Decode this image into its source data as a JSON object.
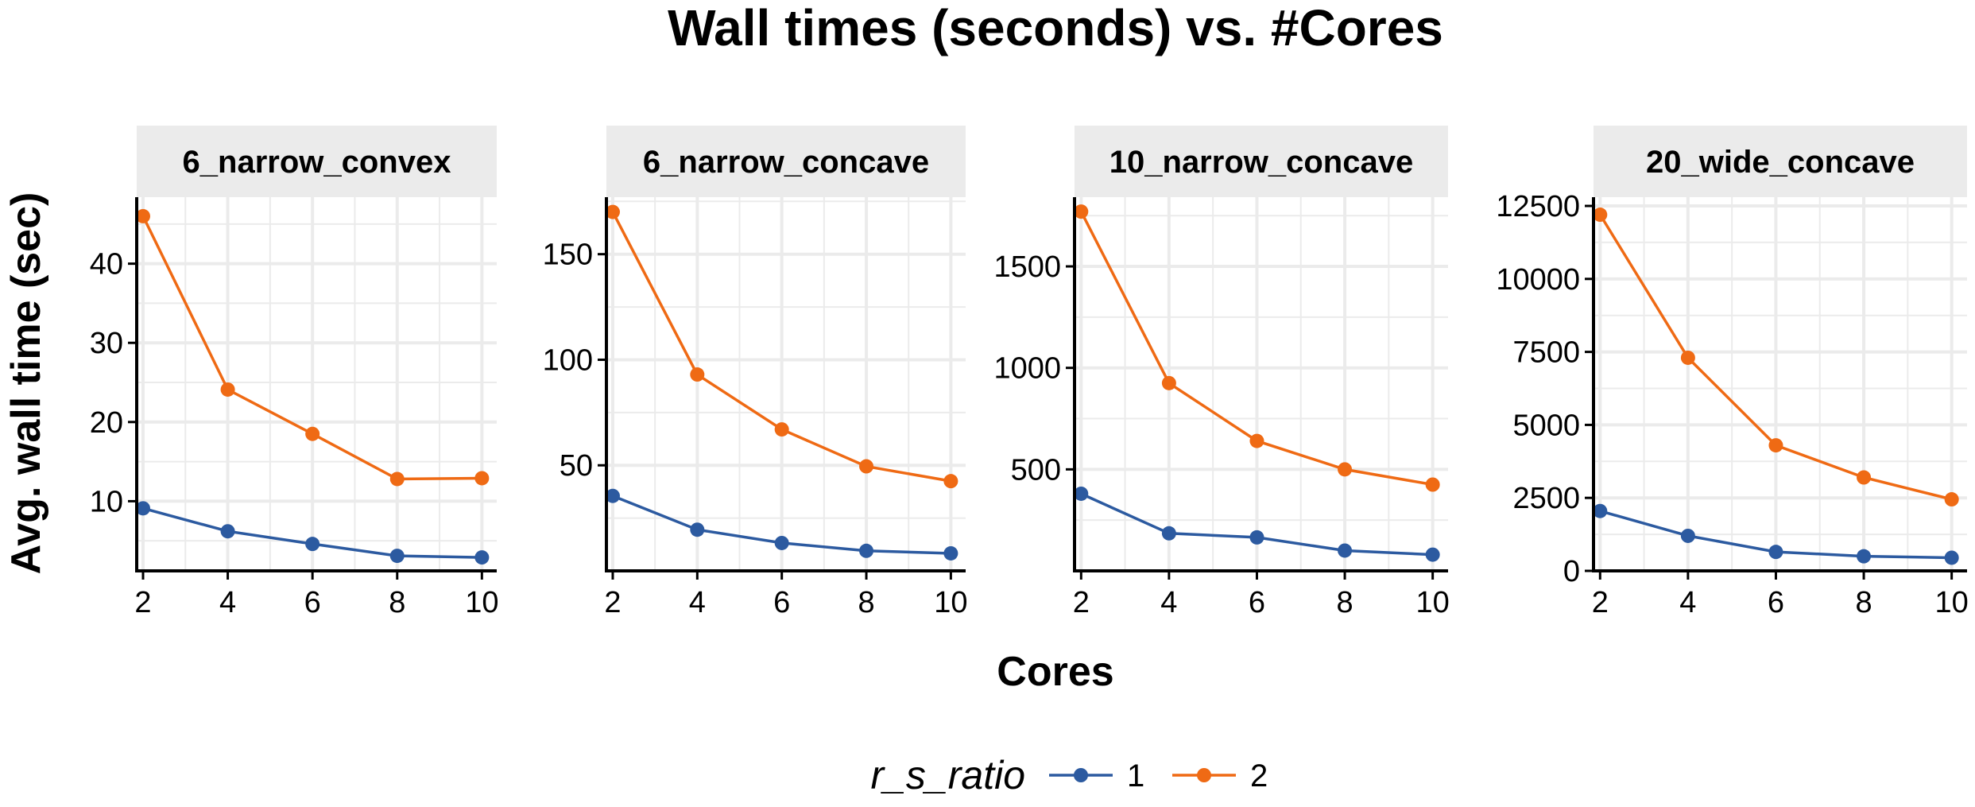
{
  "chart_data": {
    "type": "line",
    "title": "Wall times (seconds) vs. #Cores",
    "xlabel": "Cores",
    "ylabel": "Avg. wall time (sec)",
    "legend": {
      "title": "r_s_ratio",
      "position": "bottom",
      "entries": [
        {
          "name": "1",
          "color": "#2c5aa0"
        },
        {
          "name": "2",
          "color": "#ef6a14"
        }
      ]
    },
    "panels": [
      {
        "strip": "6_narrow_convex",
        "x": [
          2,
          4,
          6,
          8,
          10
        ],
        "xlim": [
          1.85,
          10.35
        ],
        "xticks": [
          2,
          4,
          6,
          8,
          10
        ],
        "ylim": [
          1.2,
          48.4
        ],
        "yticks": [
          10,
          20,
          30,
          40
        ],
        "series": [
          {
            "name": "1",
            "values": [
              9.1,
              6.2,
              4.6,
              3.1,
              2.9
            ]
          },
          {
            "name": "2",
            "values": [
              46.0,
              24.1,
              18.5,
              12.8,
              12.9
            ]
          }
        ]
      },
      {
        "strip": "6_narrow_concave",
        "x": [
          2,
          4,
          6,
          8,
          10
        ],
        "xlim": [
          1.85,
          10.35
        ],
        "xticks": [
          2,
          4,
          6,
          8,
          10
        ],
        "ylim": [
          0,
          177
        ],
        "yticks": [
          50,
          100,
          150
        ],
        "series": [
          {
            "name": "1",
            "values": [
              35.5,
              19.5,
              13.2,
              9.5,
              8.3
            ]
          },
          {
            "name": "2",
            "values": [
              170.0,
              93.0,
              67.0,
              49.5,
              42.5
            ]
          }
        ]
      },
      {
        "strip": "10_narrow_concave",
        "x": [
          2,
          4,
          6,
          8,
          10
        ],
        "xlim": [
          1.85,
          10.35
        ],
        "xticks": [
          2,
          4,
          6,
          8,
          10
        ],
        "ylim": [
          0,
          1841
        ],
        "yticks": [
          500,
          1000,
          1500
        ],
        "series": [
          {
            "name": "1",
            "values": [
              380,
              185,
              165,
              100,
              80
            ]
          },
          {
            "name": "2",
            "values": [
              1770,
              925,
              640,
              500,
              425
            ]
          }
        ]
      },
      {
        "strip": "20_wide_concave",
        "x": [
          2,
          4,
          6,
          8,
          10
        ],
        "xlim": [
          1.85,
          10.35
        ],
        "xticks": [
          2,
          4,
          6,
          8,
          10
        ],
        "ylim": [
          0,
          12800
        ],
        "yticks": [
          0,
          2500,
          5000,
          7500,
          10000,
          12500
        ],
        "series": [
          {
            "name": "1",
            "values": [
              2050,
              1200,
              650,
              500,
              450
            ]
          },
          {
            "name": "2",
            "values": [
              12200,
              7300,
              4300,
              3200,
              2450
            ]
          }
        ]
      }
    ]
  }
}
